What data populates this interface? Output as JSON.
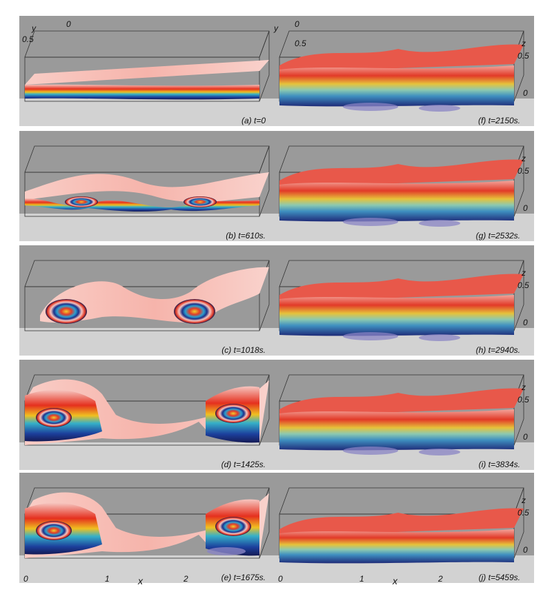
{
  "panels": [
    {
      "id": "a",
      "caption": "(a) t=0"
    },
    {
      "id": "b",
      "caption": "(b) t=610s."
    },
    {
      "id": "c",
      "caption": "(c) t=1018s."
    },
    {
      "id": "d",
      "caption": "(d) t=1425s."
    },
    {
      "id": "e",
      "caption": "(e) t=1675s."
    },
    {
      "id": "f",
      "caption": "(f) t=2150s."
    },
    {
      "id": "g",
      "caption": "(g) t=2532s."
    },
    {
      "id": "h",
      "caption": "(h) t=2940s."
    },
    {
      "id": "i",
      "caption": "(i) t=3834s."
    },
    {
      "id": "j",
      "caption": "(j) t=5459s."
    }
  ],
  "axes": {
    "y_label": "y",
    "z_label": "z",
    "x_label": "x",
    "tick_0": "0",
    "tick_05": "0.5",
    "tick_1": "1",
    "tick_2": "2"
  }
}
